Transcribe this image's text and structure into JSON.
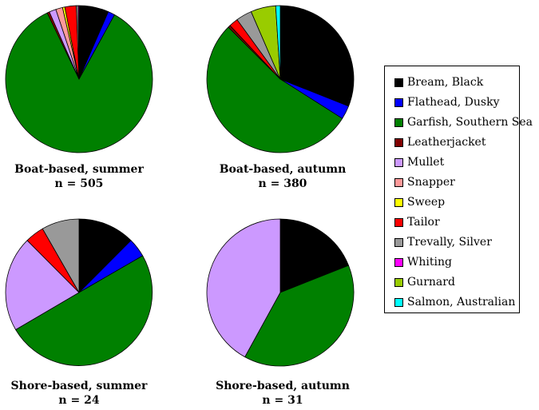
{
  "chart_data": [
    {
      "type": "pie",
      "title": "Boat-based, summer",
      "subtitle": "n = 505",
      "labels": [
        "Bream, Black",
        "Flathead, Dusky",
        "Garfish, Southern Sea",
        "Leatherjacket",
        "Mullet",
        "Snapper",
        "Sweep",
        "Tailor",
        "Trevally, Silver",
        "Whiting",
        "Gurnard",
        "Salmon, Australian"
      ],
      "values": [
        6.5,
        1.5,
        84.5,
        0.5,
        1.5,
        1.5,
        0.5,
        2.5,
        0.4,
        0.2,
        0.0,
        0.0
      ]
    },
    {
      "type": "pie",
      "title": "Boat-based, autumn",
      "subtitle": "n = 380",
      "labels": [
        "Bream, Black",
        "Flathead, Dusky",
        "Garfish, Southern Sea",
        "Leatherjacket",
        "Mullet",
        "Snapper",
        "Sweep",
        "Tailor",
        "Trevally, Silver",
        "Whiting",
        "Gurnard",
        "Salmon, Australian"
      ],
      "values": [
        31.0,
        3.0,
        53.5,
        0.5,
        0.0,
        0.0,
        0.0,
        2.0,
        3.5,
        0.0,
        5.5,
        1.0
      ]
    },
    {
      "type": "pie",
      "title": "Shore-based, summer",
      "subtitle": "n = 24",
      "labels": [
        "Bream, Black",
        "Flathead, Dusky",
        "Garfish, Southern Sea",
        "Leatherjacket",
        "Mullet",
        "Snapper",
        "Sweep",
        "Tailor",
        "Trevally, Silver",
        "Whiting",
        "Gurnard",
        "Salmon, Australian"
      ],
      "values": [
        12.5,
        4.2,
        50.0,
        0.0,
        21.0,
        0.0,
        0.0,
        4.2,
        8.3,
        0.0,
        0.0,
        0.0
      ]
    },
    {
      "type": "pie",
      "title": "Shore-based, autumn",
      "subtitle": "n = 31",
      "labels": [
        "Bream, Black",
        "Flathead, Dusky",
        "Garfish, Southern Sea",
        "Leatherjacket",
        "Mullet",
        "Snapper",
        "Sweep",
        "Tailor",
        "Trevally, Silver",
        "Whiting",
        "Gurnard",
        "Salmon, Australian"
      ],
      "values": [
        19.0,
        0.0,
        39.0,
        0.0,
        42.0,
        0.0,
        0.0,
        0.0,
        0.0,
        0.0,
        0.0,
        0.0
      ]
    }
  ],
  "legend": {
    "items": [
      {
        "label": "Bream, Black",
        "color": "#000000"
      },
      {
        "label": "Flathead, Dusky",
        "color": "#0000ff"
      },
      {
        "label": "Garfish, Southern Sea",
        "color": "#008000"
      },
      {
        "label": "Leatherjacket",
        "color": "#800000"
      },
      {
        "label": "Mullet",
        "color": "#cc99ff"
      },
      {
        "label": "Snapper",
        "color": "#ff9999"
      },
      {
        "label": "Sweep",
        "color": "#ffff00"
      },
      {
        "label": "Tailor",
        "color": "#ff0000"
      },
      {
        "label": "Trevally, Silver",
        "color": "#999999"
      },
      {
        "label": "Whiting",
        "color": "#ff00ff"
      },
      {
        "label": "Gurnard",
        "color": "#99cc00"
      },
      {
        "label": "Salmon, Australian",
        "color": "#00ffff"
      }
    ]
  }
}
